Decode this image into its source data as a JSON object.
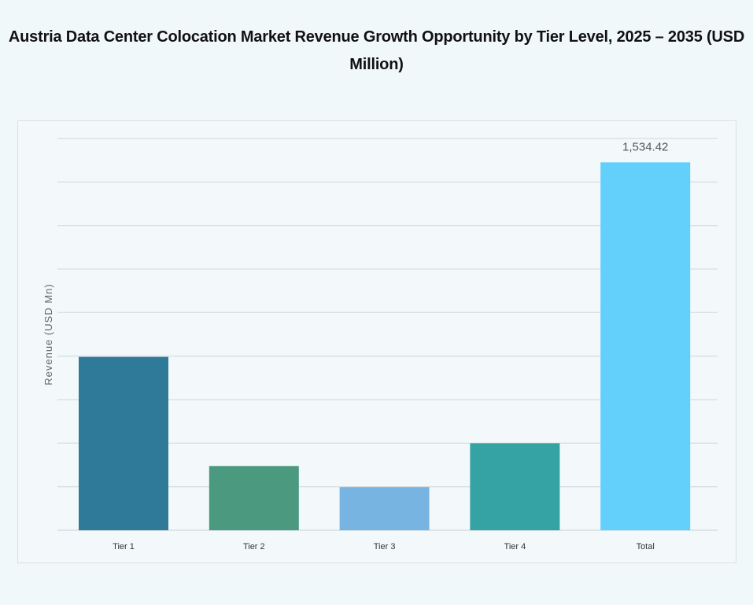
{
  "chart_data": {
    "type": "bar",
    "title": "Austria Data Center Colocation Market Revenue Growth Opportunity by Tier Level, 2025 – 2035 (USD Million)",
    "xlabel": "",
    "ylabel": "Revenue (USD Mn)",
    "categories": [
      "Tier 1",
      "Tier 2",
      "Tier 3",
      "Tier 4",
      "Total"
    ],
    "values": [
      723,
      268,
      180,
      363,
      1534.42
    ],
    "data_labels": [
      "",
      "",
      "",
      "",
      "1,534.42"
    ],
    "colors": [
      "#2f7a98",
      "#4b9a80",
      "#78b4e2",
      "#35a3a4",
      "#63d0fc"
    ],
    "ylim": [
      0,
      1634
    ],
    "gridline_count": 10,
    "y_tick_labels_shown": false,
    "grid": true,
    "legend": "none"
  }
}
